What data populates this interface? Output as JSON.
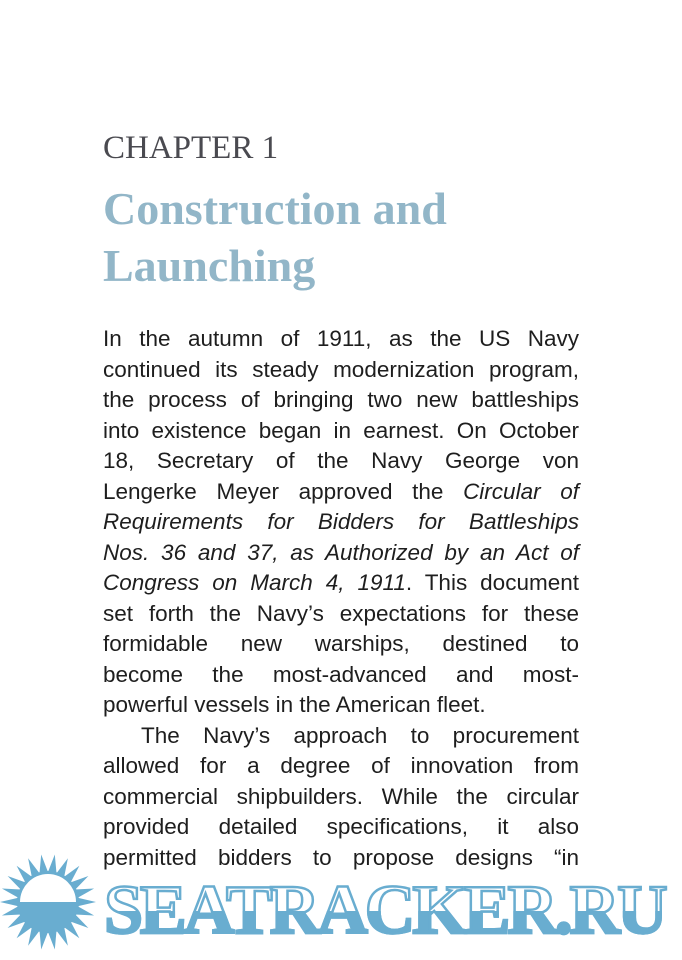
{
  "chapter_label": "CHAPTER 1",
  "title_lines": [
    "Construction and",
    "Launching"
  ],
  "colors": {
    "title": "#92b6c8",
    "watermark": "#69add0",
    "body_text": "#1e1e1e"
  },
  "body_lines": [
    {
      "justify": true,
      "segments": [
        {
          "text": "In the autumn of 1911, as the US Navy"
        }
      ]
    },
    {
      "justify": true,
      "segments": [
        {
          "text": "continued its steady modernization program,"
        }
      ]
    },
    {
      "justify": true,
      "segments": [
        {
          "text": "the process of bringing two new battleships"
        }
      ]
    },
    {
      "justify": true,
      "segments": [
        {
          "text": "into existence began in earnest. On October"
        }
      ]
    },
    {
      "justify": true,
      "segments": [
        {
          "text": "18, Secretary of the Navy George von"
        }
      ]
    },
    {
      "justify": true,
      "segments": [
        {
          "text": "Lengerke Meyer approved the "
        },
        {
          "text": "Circular of",
          "italic": true
        }
      ]
    },
    {
      "justify": true,
      "segments": [
        {
          "text": "Requirements for Bidders for Battleships",
          "italic": true
        }
      ]
    },
    {
      "justify": true,
      "segments": [
        {
          "text": "Nos. 36 and 37, as Authorized by an Act of",
          "italic": true
        }
      ]
    },
    {
      "justify": true,
      "segments": [
        {
          "text": "Congress on March 4, 1911",
          "italic": true
        },
        {
          "text": ". This document"
        }
      ]
    },
    {
      "justify": true,
      "segments": [
        {
          "text": "set forth the Navy’s expectations for these"
        }
      ]
    },
    {
      "justify": true,
      "segments": [
        {
          "text": "formidable new warships, destined to"
        }
      ]
    },
    {
      "justify": true,
      "segments": [
        {
          "text": "become the most-advanced and most-"
        }
      ]
    },
    {
      "justify": false,
      "segments": [
        {
          "text": "powerful vessels in the American fleet."
        }
      ]
    },
    {
      "justify": true,
      "indent": true,
      "segments": [
        {
          "text": "The Navy’s approach to procurement"
        }
      ]
    },
    {
      "justify": true,
      "segments": [
        {
          "text": "allowed for a degree of innovation from"
        }
      ]
    },
    {
      "justify": true,
      "segments": [
        {
          "text": "commercial shipbuilders. While the circular"
        }
      ]
    },
    {
      "justify": true,
      "segments": [
        {
          "text": "provided detailed specifications, it also"
        }
      ]
    },
    {
      "justify": true,
      "segments": [
        {
          "text": "permitted bidders to propose designs “in"
        }
      ]
    }
  ],
  "watermark": {
    "text": "SEATRACKER.RU",
    "icon": "sun-icon"
  }
}
